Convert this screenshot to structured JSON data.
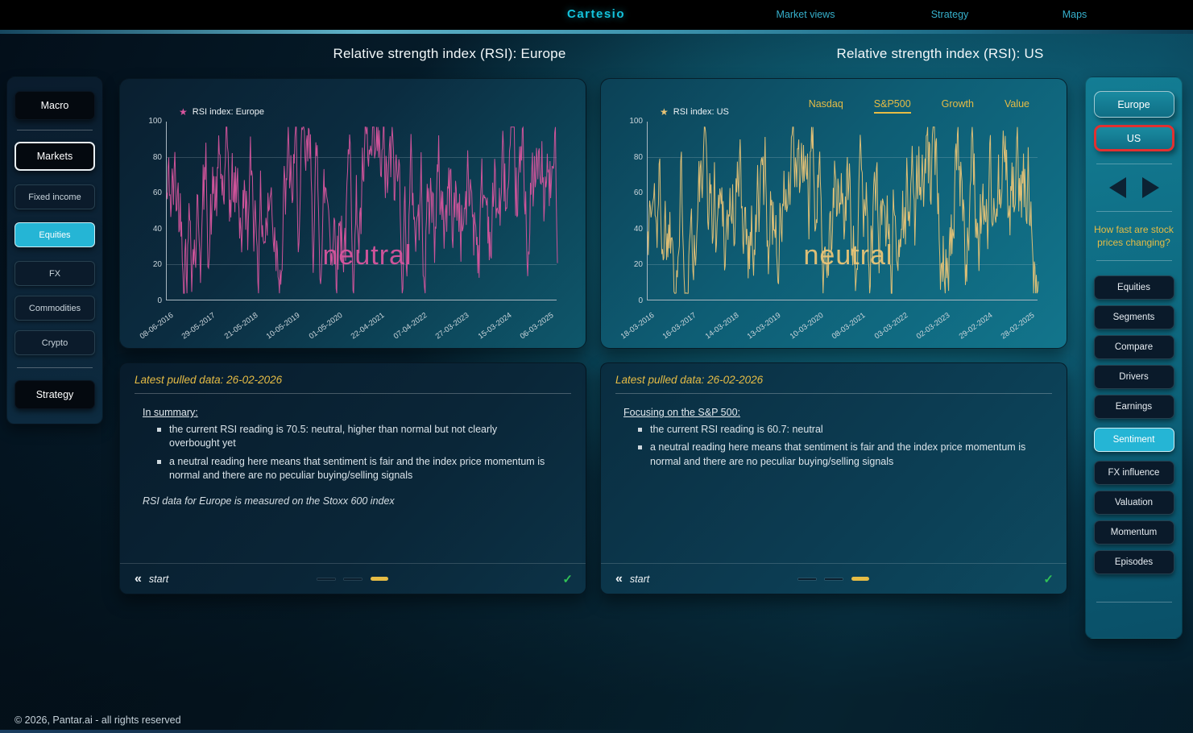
{
  "colors": {
    "accent_cyan": "#25b5d5",
    "logo_cyan": "#14c3dc",
    "nav_link_cyan": "#36b0cc",
    "gold": "#e6bc45",
    "pink": "#d8559e",
    "us_line_gold": "#e9c476",
    "red_border": "#e23030",
    "green_check": "#31c156"
  },
  "icons": {
    "star": "★",
    "back_chevrons": "«",
    "check": "✓"
  },
  "topnav": {
    "logo": "Cartesio",
    "links": [
      {
        "label": "Market views"
      },
      {
        "label": "Strategy"
      },
      {
        "label": "Maps"
      }
    ]
  },
  "left_sidebar": {
    "macro_label": "Macro",
    "markets_label": "Markets",
    "sub_items": [
      {
        "label": "Fixed income",
        "selected": false
      },
      {
        "label": "Equities",
        "selected": true
      },
      {
        "label": "FX",
        "selected": false
      },
      {
        "label": "Commodities",
        "selected": false
      },
      {
        "label": "Crypto",
        "selected": false
      }
    ],
    "strategy_label": "Strategy"
  },
  "chart_data": [
    {
      "type": "line",
      "region": "Europe",
      "title": "Relative strength index (RSI): Europe",
      "legend": "RSI index: Europe",
      "watermark": "neutral",
      "line_color": "#d8559e",
      "ylim": [
        0,
        100
      ],
      "yticks": [
        0,
        20,
        40,
        60,
        80,
        100
      ],
      "grid_values": [
        20,
        80
      ],
      "xlabels": [
        "08-06-2016",
        "29-05-2017",
        "21-05-2018",
        "10-05-2019",
        "01-05-2020",
        "22-04-2021",
        "07-04-2022",
        "27-03-2023",
        "15-03-2024",
        "06-03-2025"
      ],
      "latest_rsi": 70.5,
      "series_note": "noisy daily RSI oscillating roughly between 10 and 95, mean ~55",
      "generator": {
        "seed": 42,
        "points": 580,
        "mean": 55,
        "revert": 0.18,
        "noise": 26,
        "min": 4,
        "max": 97
      }
    },
    {
      "type": "line",
      "region": "US",
      "title": "Relative strength index (RSI): US",
      "legend": "RSI index: US",
      "watermark": "neutral",
      "line_color": "#e9c476",
      "ylim": [
        0,
        100
      ],
      "yticks": [
        0,
        20,
        40,
        60,
        80,
        100
      ],
      "grid_values": [
        20,
        80
      ],
      "xlabels": [
        "18-03-2016",
        "16-03-2017",
        "14-03-2018",
        "13-03-2019",
        "10-03-2020",
        "08-03-2021",
        "03-03-2022",
        "02-03-2023",
        "29-02-2024",
        "28-02-2025"
      ],
      "latest_rsi": 60.7,
      "tabs": [
        {
          "label": "Nasdaq",
          "active": false
        },
        {
          "label": "S&P500",
          "active": true
        },
        {
          "label": "Growth",
          "active": false
        },
        {
          "label": "Value",
          "active": false
        }
      ],
      "series_note": "noisy daily RSI oscillating roughly between 10 and 95, mean ~55",
      "generator": {
        "seed": 1337,
        "points": 580,
        "mean": 55,
        "revert": 0.18,
        "noise": 26,
        "min": 4,
        "max": 97
      }
    }
  ],
  "info_panels": [
    {
      "header": "Latest pulled data: 26-02-2026",
      "heading": "In summary:",
      "bullets": [
        "the current RSI reading is 70.5: neutral, higher than normal but not clearly overbought yet",
        "a neutral reading here means that sentiment is fair and the index price momentum is normal and there are no peculiar buying/selling signals"
      ],
      "note": "RSI data for Europe is measured on the Stoxx 600 index",
      "back_label": "start"
    },
    {
      "header": "Latest pulled data: 26-02-2026",
      "heading": "Focusing on the S&P 500:",
      "bullets": [
        "the current RSI reading is 60.7: neutral",
        "a neutral reading here means that sentiment is fair and the index price momentum is normal and there are no peculiar buying/selling signals"
      ],
      "note": "",
      "back_label": "start"
    }
  ],
  "right_sidebar": {
    "regions": [
      {
        "label": "Europe",
        "selected": false
      },
      {
        "label": "US",
        "selected": true
      }
    ],
    "question": "How fast are stock prices changing?",
    "items": [
      {
        "label": "Equities",
        "selected": false
      },
      {
        "label": "Segments",
        "selected": false
      },
      {
        "label": "Compare",
        "selected": false
      },
      {
        "label": "Drivers",
        "selected": false
      },
      {
        "label": "Earnings",
        "selected": false
      },
      {
        "label": "Sentiment",
        "selected": true
      },
      {
        "label": "FX influence",
        "selected": false
      },
      {
        "label": "Valuation",
        "selected": false
      },
      {
        "label": "Momentum",
        "selected": false
      },
      {
        "label": "Episodes",
        "selected": false
      }
    ]
  },
  "footer": {
    "copyright": "© 2026, Pantar.ai - all rights reserved"
  }
}
